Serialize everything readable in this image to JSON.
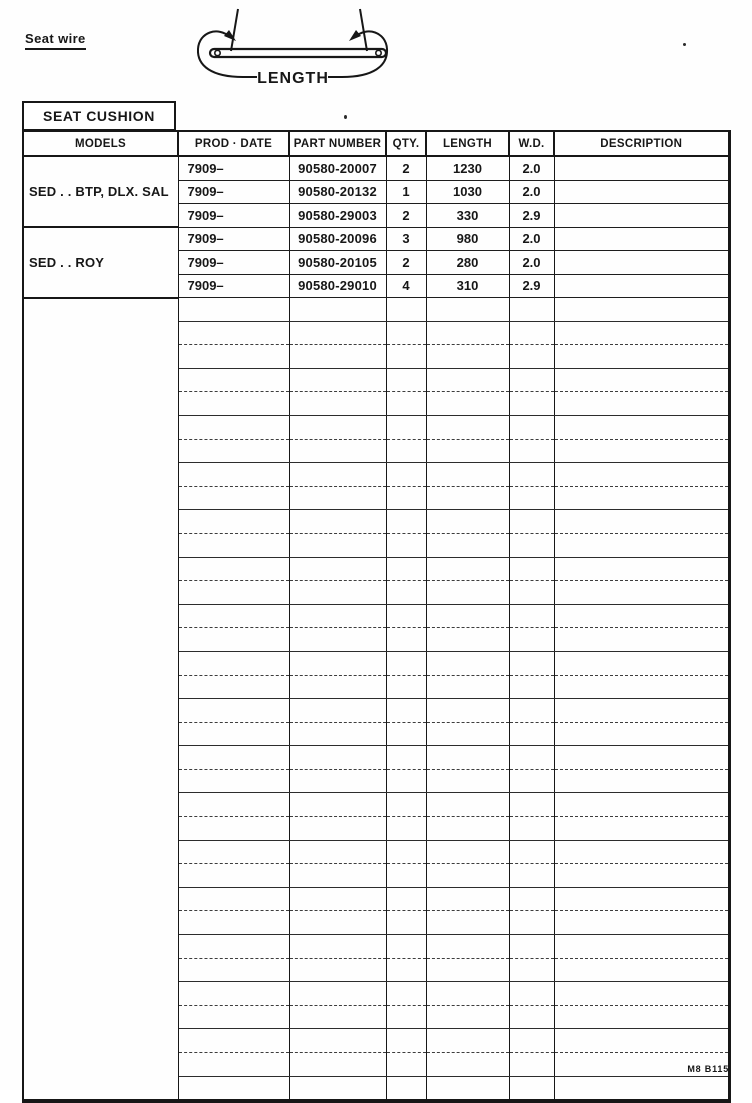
{
  "page": {
    "title": "Seat wire",
    "footer_code": "M8 B115"
  },
  "diagram": {
    "label": "LENGTH"
  },
  "table": {
    "section_title": "SEAT CUSHION",
    "headers": [
      "MODELS",
      "PROD · DATE",
      "PART NUMBER",
      "QTY.",
      "LENGTH",
      "W.D.",
      "DESCRIPTION"
    ],
    "groups": [
      {
        "model": "SED . . BTP, DLX. SAL",
        "rows": [
          {
            "prod_date": "7909–",
            "part_number": "90580-20007",
            "qty": "2",
            "length": "1230",
            "wd": "2.0",
            "description": ""
          },
          {
            "prod_date": "7909–",
            "part_number": "90580-20132",
            "qty": "1",
            "length": "1030",
            "wd": "2.0",
            "description": ""
          },
          {
            "prod_date": "7909–",
            "part_number": "90580-29003",
            "qty": "2",
            "length": "330",
            "wd": "2.9",
            "description": ""
          }
        ]
      },
      {
        "model": "SED . . ROY",
        "rows": [
          {
            "prod_date": "7909–",
            "part_number": "90580-20096",
            "qty": "3",
            "length": "980",
            "wd": "2.0",
            "description": ""
          },
          {
            "prod_date": "7909–",
            "part_number": "90580-20105",
            "qty": "2",
            "length": "280",
            "wd": "2.0",
            "description": ""
          },
          {
            "prod_date": "7909–",
            "part_number": "90580-29010",
            "qty": "4",
            "length": "310",
            "wd": "2.9",
            "description": ""
          }
        ]
      }
    ],
    "empty_row_count": 34
  }
}
